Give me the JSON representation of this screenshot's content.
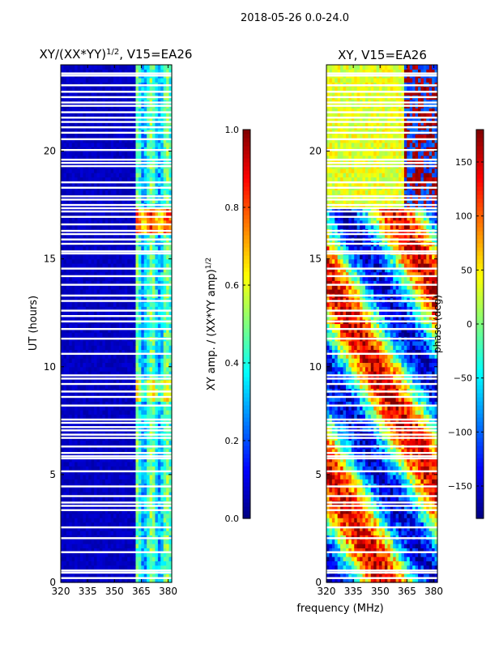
{
  "suptitle": "2018-05-26 0.0-24.0",
  "common_xlabel": "frequency (MHz)",
  "colors": {
    "jet": [
      "#00007f",
      "#0000ff",
      "#007fff",
      "#00ffff",
      "#7fff7f",
      "#ffff00",
      "#ff7f00",
      "#ff0000",
      "#7f0000"
    ],
    "gap": "#ffffff"
  },
  "chart_data": [
    {
      "type": "heatmap",
      "title_main": "XY/(XX*YY)",
      "title_sup": "1/2",
      "title_rest": ", V15=EA26",
      "xlabel": "",
      "ylabel": "UT (hours)",
      "xlim": [
        320,
        382
      ],
      "ylim": [
        0,
        24
      ],
      "xticks": [
        320,
        335,
        350,
        365,
        380
      ],
      "yticks": [
        0,
        5,
        10,
        15,
        20
      ],
      "colorbar": {
        "label_main": "XY amp. / (XX*YY amp)",
        "label_sup": "1/2",
        "range": [
          0.0,
          1.0
        ],
        "ticks": [
          "0.0",
          "0.2",
          "0.4",
          "0.6",
          "0.8",
          "1.0"
        ],
        "tick_values": [
          0.0,
          0.2,
          0.4,
          0.6,
          0.8,
          1.0
        ]
      }
    },
    {
      "type": "heatmap",
      "title": "XY, V15=EA26",
      "xlabel": "",
      "ylabel": "",
      "xlim": [
        320,
        382
      ],
      "ylim": [
        0,
        24
      ],
      "xticks": [
        320,
        335,
        350,
        365,
        380
      ],
      "yticks": [
        0,
        5,
        10,
        15,
        20
      ],
      "colorbar": {
        "label": "phase (deg)",
        "range": [
          -180,
          180
        ],
        "ticks": [
          "150",
          "100",
          "50",
          "0",
          "−50",
          "−100",
          "−150"
        ],
        "tick_values": [
          150,
          100,
          50,
          0,
          -50,
          -100,
          -150
        ]
      }
    }
  ],
  "time_gaps_hours": [
    0.2,
    0.45,
    0.55,
    1.4,
    2.05,
    2.55,
    3.35,
    3.55,
    3.7,
    4.0,
    4.45,
    5.15,
    5.75,
    5.85,
    6.0,
    6.3,
    6.7,
    6.85,
    7.05,
    7.2,
    7.4,
    7.55,
    8.2,
    8.6,
    8.85,
    9.2,
    9.45,
    9.6,
    10.6,
    11.3,
    11.75,
    12.1,
    12.35,
    12.6,
    13.05,
    13.3,
    13.8,
    14.2,
    14.55,
    15.25,
    15.35,
    15.7,
    15.9,
    16.15,
    16.3,
    16.6,
    16.95,
    17.2,
    17.35,
    17.5,
    17.75,
    17.9,
    18.3,
    18.55,
    19.3,
    19.45,
    19.6,
    20.05,
    20.55,
    20.85,
    21.1,
    21.35,
    21.55,
    21.8,
    22.1,
    22.25,
    22.5,
    22.75,
    23.05,
    23.5,
    23.6
  ]
}
